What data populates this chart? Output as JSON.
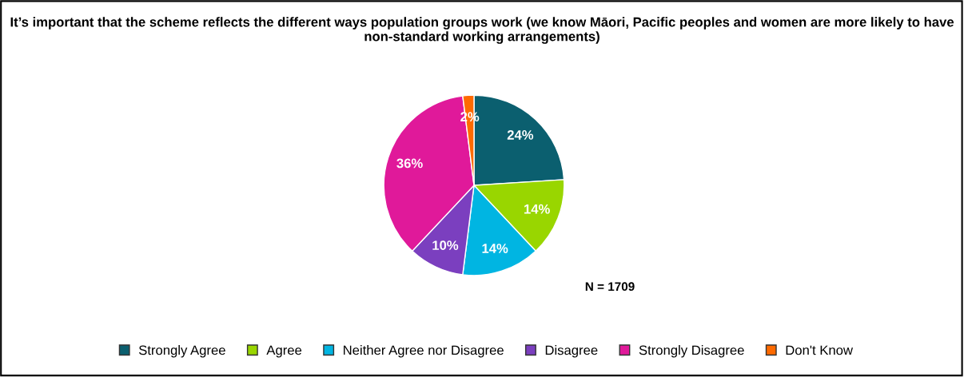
{
  "chart_data": {
    "type": "pie",
    "title": "It’s important that the scheme reflects the different ways population groups work (we know Māori, Pacific peoples and women are more likely to have non-standard working arrangements)",
    "categories": [
      "Strongly Agree",
      "Agree",
      "Neither Agree nor Disagree",
      "Disagree",
      "Strongly Disagree",
      "Don't Know"
    ],
    "values": [
      24,
      14,
      14,
      10,
      36,
      2
    ],
    "colors": [
      "#0b5f6f",
      "#99d600",
      "#00b5e2",
      "#7b3fbf",
      "#e0199a",
      "#ff6a00"
    ],
    "value_labels": [
      "24%",
      "14%",
      "14%",
      "10%",
      "36%",
      "2%"
    ],
    "annotations": [
      "N = 1709"
    ],
    "legend": "bottom"
  }
}
